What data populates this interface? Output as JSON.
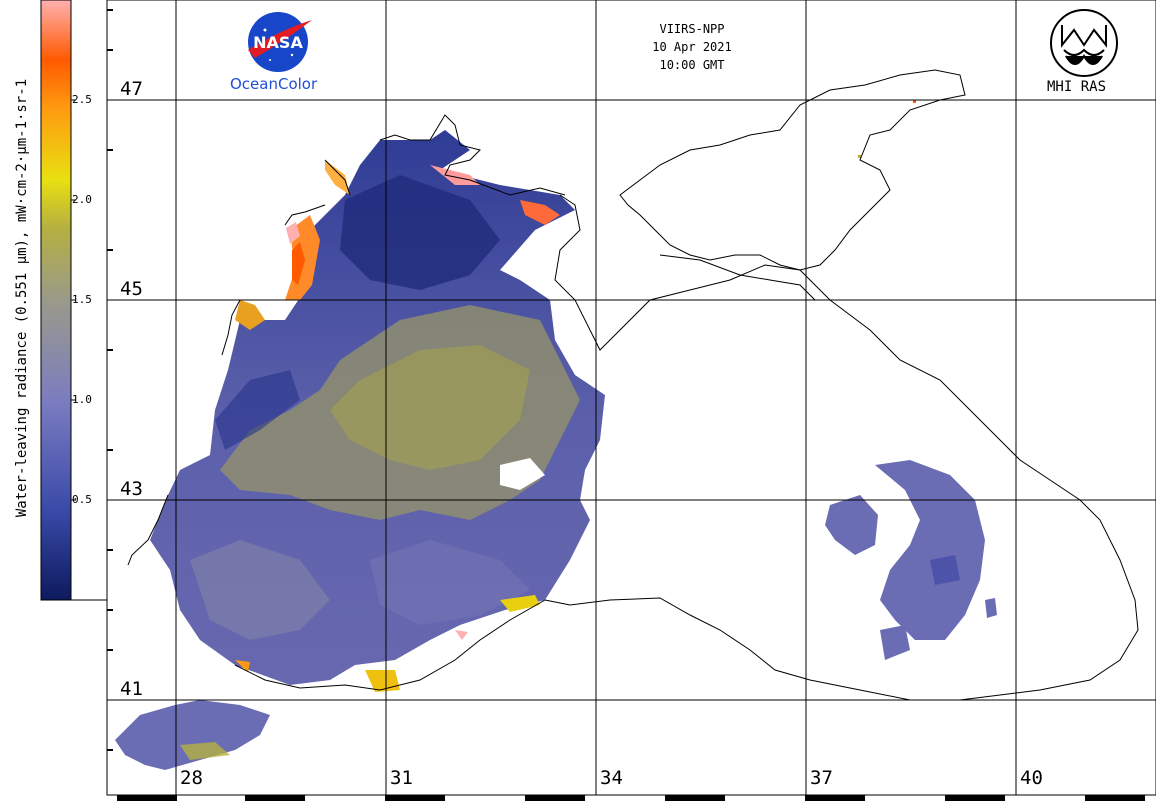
{
  "satellite": {
    "sensor": "VIIRS-NPP",
    "date": "10 Apr 2021",
    "time": "10:00 GMT"
  },
  "logos": {
    "nasa_text": "NASA",
    "ocean_color": "OceanColor",
    "institute": "MHI RAS"
  },
  "colorbar": {
    "title": "Water-leaving radiance (0.551 µm), mW·cm-2·µm-1·sr-1",
    "ticks": [
      "2.5",
      "2.0",
      "1.5",
      "1.0",
      "0.5"
    ],
    "colors": [
      "#0d1a5e",
      "#3a4aa8",
      "#7a7ac0",
      "#9a9a8a",
      "#b5b040",
      "#e8e010",
      "#ff9a10",
      "#ff5a00",
      "#ffb0b0"
    ]
  },
  "grid": {
    "latitudes": [
      "47",
      "45",
      "43",
      "41"
    ],
    "longitudes": [
      "28",
      "31",
      "34",
      "37",
      "40"
    ]
  }
}
